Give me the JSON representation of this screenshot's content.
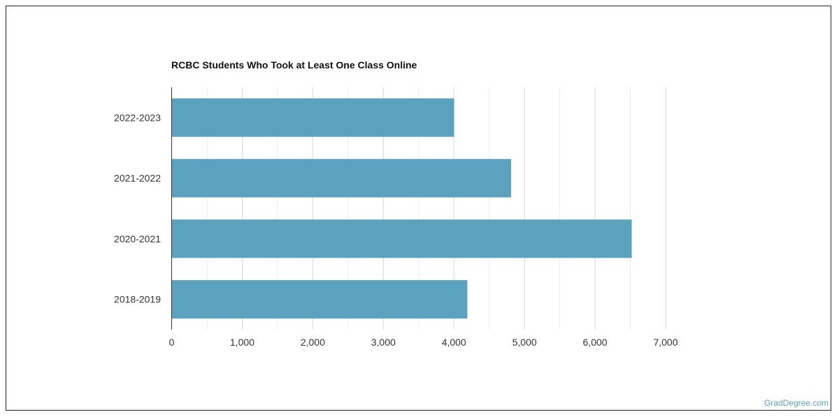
{
  "chart_data": {
    "type": "bar",
    "orientation": "horizontal",
    "title": "RCBC Students Who Took at Least One Class Online",
    "categories": [
      "2022-2023",
      "2021-2022",
      "2020-2021",
      "2018-2019"
    ],
    "values": [
      4002,
      4810,
      6520,
      4190
    ],
    "xlim": [
      0,
      7000
    ],
    "xticks": [
      0,
      1000,
      2000,
      3000,
      4000,
      5000,
      6000,
      7000
    ],
    "xtick_labels": [
      "0",
      "1,000",
      "2,000",
      "3,000",
      "4,000",
      "5,000",
      "6,000",
      "7,000"
    ],
    "grid": true,
    "bar_color": "#5ba2be"
  },
  "watermark": "GradDegree.com"
}
